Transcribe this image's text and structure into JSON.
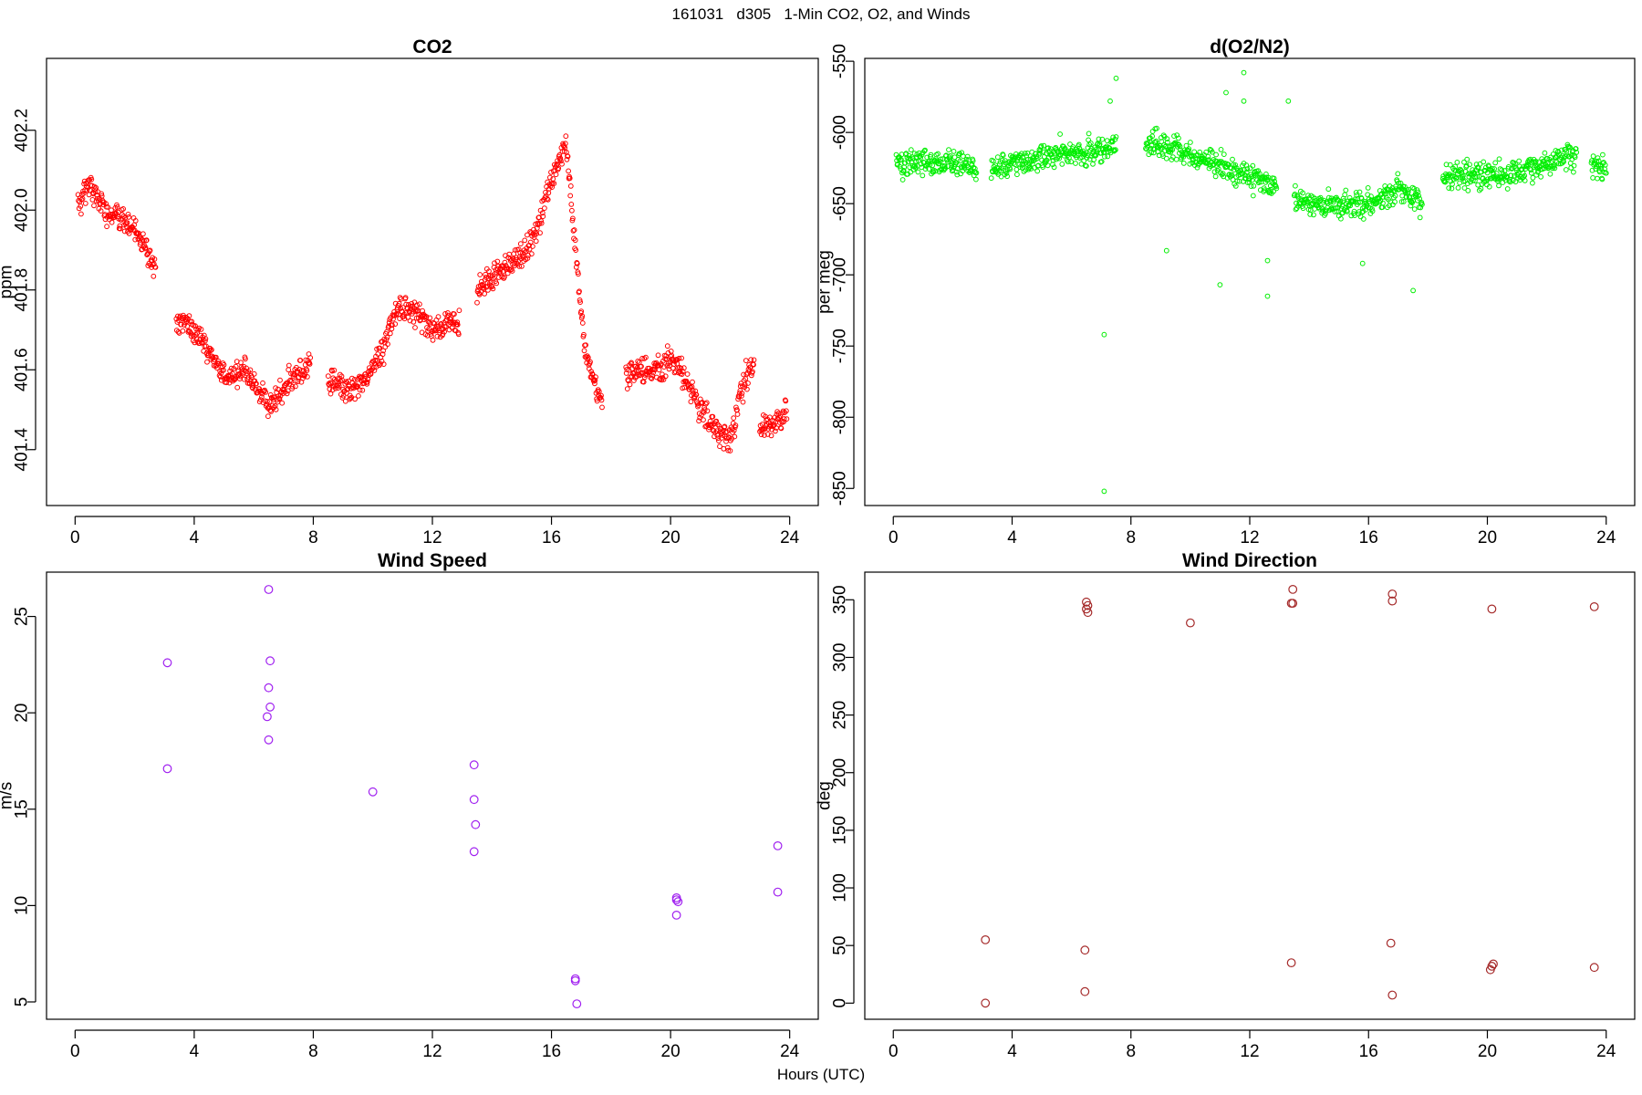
{
  "figure": {
    "title": "161031   d305   1-Min CO2, O2, and Winds",
    "xlabel": "Hours (UTC)"
  },
  "chart_data": [
    {
      "type": "scatter",
      "title": "CO2",
      "xlabel": "",
      "ylabel": "ppm",
      "xlim": [
        -0.96,
        24.96
      ],
      "ylim": [
        401.26,
        402.38
      ],
      "xticks": [
        0,
        4,
        8,
        12,
        16,
        20,
        24
      ],
      "yticks": [
        401.4,
        401.6,
        401.8,
        402.0,
        402.2
      ],
      "ytick_labels": [
        "401.4",
        "401.6",
        "401.8",
        "402.0",
        "402.2"
      ],
      "marker": "open-circle-small",
      "color": "#ff0000",
      "noise": 0.025,
      "segments": [
        {
          "x": [
            0.1,
            0.5,
            1.0,
            1.5,
            2.0,
            2.4,
            2.7
          ],
          "y": [
            402.02,
            402.06,
            402.0,
            401.98,
            401.95,
            401.9,
            401.85
          ]
        },
        {
          "x": [
            3.4,
            3.8,
            4.2,
            4.7,
            5.2,
            5.7,
            6.2,
            6.5,
            6.8,
            7.2,
            7.7,
            7.9
          ],
          "y": [
            401.72,
            401.72,
            401.68,
            401.62,
            401.58,
            401.6,
            401.54,
            401.51,
            401.53,
            401.57,
            401.6,
            401.62
          ]
        },
        {
          "x": [
            8.5,
            9.0,
            9.5,
            10.0,
            10.4,
            10.7,
            11.0,
            11.5,
            12.0,
            12.5,
            12.9
          ],
          "y": [
            401.58,
            401.55,
            401.56,
            401.6,
            401.66,
            401.74,
            401.76,
            401.74,
            401.7,
            401.72,
            401.72
          ]
        },
        {
          "x": [
            13.5,
            14.0,
            14.5,
            15.0,
            15.5,
            15.9,
            16.3,
            16.5,
            16.8,
            17.1,
            17.4,
            17.7
          ],
          "y": [
            401.8,
            401.83,
            401.86,
            401.88,
            401.95,
            402.05,
            402.13,
            402.17,
            401.9,
            401.66,
            401.58,
            401.52
          ]
        },
        {
          "x": [
            18.5,
            19.0,
            19.5,
            20.0,
            20.5,
            21.0,
            21.5,
            22.0,
            22.5,
            22.8
          ],
          "y": [
            401.58,
            401.6,
            401.6,
            401.62,
            401.58,
            401.5,
            401.46,
            401.42,
            401.58,
            401.6
          ]
        },
        {
          "x": [
            23.0,
            23.4,
            23.9
          ],
          "y": [
            401.46,
            401.46,
            401.5
          ]
        }
      ]
    },
    {
      "type": "scatter",
      "title": "d(O2/N2)",
      "xlabel": "",
      "ylabel": "per meg",
      "xlim": [
        -0.96,
        24.96
      ],
      "ylim": [
        -862,
        -548
      ],
      "xticks": [
        0,
        4,
        8,
        12,
        16,
        20,
        24
      ],
      "yticks": [
        -850,
        -800,
        -750,
        -700,
        -650,
        -600,
        -550
      ],
      "ytick_labels": [
        "-850",
        "-800",
        "-750",
        "-700",
        "-650",
        "-600",
        "-550"
      ],
      "marker": "open-circle-small",
      "color": "#00ee00",
      "noise": 7,
      "segments": [
        {
          "x": [
            0.1,
            1.0,
            2.0,
            2.8
          ],
          "y": [
            -622,
            -620,
            -622,
            -624
          ]
        },
        {
          "x": [
            3.3,
            4.5,
            5.5,
            6.5,
            7.5
          ],
          "y": [
            -626,
            -618,
            -615,
            -614,
            -610
          ]
        },
        {
          "x": [
            8.5,
            9.5,
            10.5,
            11.5,
            12.5,
            12.9
          ],
          "y": [
            -607,
            -610,
            -620,
            -628,
            -635,
            -636
          ]
        },
        {
          "x": [
            13.5,
            14.5,
            15.5,
            16.0,
            17.0,
            17.8
          ],
          "y": [
            -648,
            -650,
            -652,
            -650,
            -640,
            -650
          ]
        },
        {
          "x": [
            18.5,
            19.5,
            20.5,
            21.5,
            22.5,
            23.0
          ],
          "y": [
            -632,
            -630,
            -630,
            -625,
            -618,
            -615
          ]
        },
        {
          "x": [
            23.5,
            24.0
          ],
          "y": [
            -623,
            -625
          ]
        }
      ],
      "outliers": [
        {
          "x": 7.1,
          "y": -852
        },
        {
          "x": 7.1,
          "y": -742
        },
        {
          "x": 7.5,
          "y": -562
        },
        {
          "x": 7.3,
          "y": -578
        },
        {
          "x": 11.8,
          "y": -558
        },
        {
          "x": 11.2,
          "y": -572
        },
        {
          "x": 11.8,
          "y": -578
        },
        {
          "x": 12.6,
          "y": -715
        },
        {
          "x": 11.0,
          "y": -707
        },
        {
          "x": 12.6,
          "y": -690
        },
        {
          "x": 9.2,
          "y": -683
        },
        {
          "x": 13.3,
          "y": -578
        },
        {
          "x": 15.8,
          "y": -692
        },
        {
          "x": 17.5,
          "y": -711
        }
      ]
    },
    {
      "type": "scatter",
      "title": "Wind Speed",
      "xlabel": "",
      "ylabel": "m/s",
      "xlim": [
        -0.96,
        24.96
      ],
      "ylim": [
        4.1,
        27.3
      ],
      "xticks": [
        0,
        4,
        8,
        12,
        16,
        20,
        24
      ],
      "yticks": [
        5,
        10,
        15,
        20,
        25
      ],
      "ytick_labels": [
        "5",
        "10",
        "15",
        "20",
        "25"
      ],
      "marker": "open-circle",
      "color": "#a020f0",
      "points": [
        {
          "x": 3.1,
          "y": 22.6
        },
        {
          "x": 3.1,
          "y": 17.1
        },
        {
          "x": 6.5,
          "y": 26.4
        },
        {
          "x": 6.55,
          "y": 22.7
        },
        {
          "x": 6.5,
          "y": 21.3
        },
        {
          "x": 6.55,
          "y": 20.3
        },
        {
          "x": 6.45,
          "y": 19.8
        },
        {
          "x": 6.5,
          "y": 18.6
        },
        {
          "x": 10.0,
          "y": 15.9
        },
        {
          "x": 13.4,
          "y": 17.3
        },
        {
          "x": 13.4,
          "y": 15.5
        },
        {
          "x": 13.45,
          "y": 14.2
        },
        {
          "x": 13.4,
          "y": 12.8
        },
        {
          "x": 16.8,
          "y": 6.2
        },
        {
          "x": 16.8,
          "y": 6.1
        },
        {
          "x": 16.85,
          "y": 4.9
        },
        {
          "x": 20.2,
          "y": 10.4
        },
        {
          "x": 20.25,
          "y": 10.2
        },
        {
          "x": 20.2,
          "y": 10.3
        },
        {
          "x": 20.2,
          "y": 9.5
        },
        {
          "x": 23.6,
          "y": 13.1
        },
        {
          "x": 23.6,
          "y": 10.7
        }
      ]
    },
    {
      "type": "scatter",
      "title": "Wind Direction",
      "xlabel": "",
      "ylabel": "deg",
      "xlim": [
        -0.96,
        24.96
      ],
      "ylim": [
        -14,
        374
      ],
      "xticks": [
        0,
        4,
        8,
        12,
        16,
        20,
        24
      ],
      "yticks": [
        0,
        50,
        100,
        150,
        200,
        250,
        300,
        350
      ],
      "ytick_labels": [
        "0",
        "50",
        "100",
        "150",
        "200",
        "250",
        "300",
        "350"
      ],
      "marker": "open-circle",
      "color": "#a52a2a",
      "points": [
        {
          "x": 3.1,
          "y": 55
        },
        {
          "x": 3.1,
          "y": 0
        },
        {
          "x": 6.5,
          "y": 348
        },
        {
          "x": 6.55,
          "y": 345
        },
        {
          "x": 6.5,
          "y": 342
        },
        {
          "x": 6.55,
          "y": 339
        },
        {
          "x": 6.45,
          "y": 46
        },
        {
          "x": 6.45,
          "y": 10
        },
        {
          "x": 10.0,
          "y": 330
        },
        {
          "x": 13.45,
          "y": 359
        },
        {
          "x": 13.4,
          "y": 347
        },
        {
          "x": 13.45,
          "y": 347
        },
        {
          "x": 13.4,
          "y": 35
        },
        {
          "x": 16.8,
          "y": 355
        },
        {
          "x": 16.8,
          "y": 349
        },
        {
          "x": 16.75,
          "y": 52
        },
        {
          "x": 16.8,
          "y": 7
        },
        {
          "x": 20.15,
          "y": 342
        },
        {
          "x": 20.2,
          "y": 34
        },
        {
          "x": 20.15,
          "y": 32
        },
        {
          "x": 20.1,
          "y": 29
        },
        {
          "x": 23.6,
          "y": 344
        },
        {
          "x": 23.6,
          "y": 31
        }
      ]
    }
  ]
}
